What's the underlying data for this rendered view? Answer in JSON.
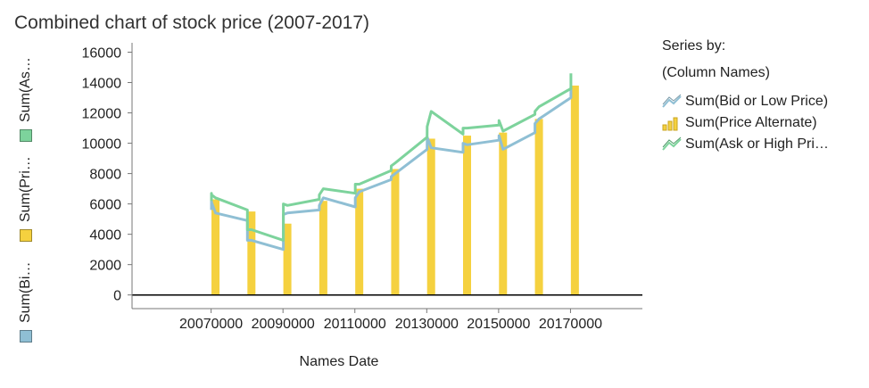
{
  "title": "Combined chart of stock price (2007-2017)",
  "legend": {
    "header1": "Series by:",
    "header2": "(Column Names)",
    "items": [
      {
        "label": "Sum(Bid or Low Price)",
        "icon": "line-icon",
        "color": "#8fbfd4"
      },
      {
        "label": "Sum(Price Alternate)",
        "icon": "bar-icon",
        "color": "#f5d13f"
      },
      {
        "label": "Sum(Ask or High Pri…",
        "icon": "line-icon",
        "color": "#7dd39c"
      }
    ]
  },
  "y_legend": [
    {
      "label": "Sum(As…",
      "color": "#7dd39c"
    },
    {
      "label": "Sum(Pri…",
      "color": "#f5d13f"
    },
    {
      "label": "Sum(Bi…",
      "color": "#8fbfd4"
    }
  ],
  "chart_data": {
    "type": "bar+line",
    "title": "Combined chart of stock price (2007-2017)",
    "xlabel": "Names Date",
    "ylabel": "",
    "x_ticks": [
      20070000,
      20090000,
      20110000,
      20130000,
      20150000,
      20170000
    ],
    "y_ticks": [
      0,
      2000,
      4000,
      6000,
      8000,
      10000,
      12000,
      14000,
      16000
    ],
    "xlim": [
      20048000,
      20190000
    ],
    "ylim": [
      -900,
      16500
    ],
    "series": [
      {
        "name": "Sum(Bid or Low Price)",
        "type": "line",
        "color": "#8fbfd4",
        "x": [
          20070103,
          20070105,
          20070110,
          20071228,
          20080102,
          20080110,
          20081231,
          20090102,
          20090110,
          20091231,
          20100104,
          20100110,
          20101231,
          20110103,
          20110110,
          20111230,
          20120103,
          20120110,
          20121231,
          20130102,
          20130110,
          20131231,
          20140102,
          20140110,
          20141231,
          20150102,
          20150110,
          20151231,
          20160104,
          20160110,
          20161230,
          20170103,
          20170110
        ],
        "y": [
          5600,
          6200,
          6100,
          5400,
          4900,
          3600,
          3600,
          3000,
          5300,
          5400,
          5600,
          5900,
          6400,
          5800,
          6400,
          6800,
          7600,
          7800,
          8000,
          9600,
          10400,
          9700,
          9400,
          10000,
          9900,
          10200,
          10500,
          9600,
          10700,
          11300,
          11600,
          13000,
          13700
        ]
      },
      {
        "name": "Sum(Price Alternate)",
        "type": "bar",
        "color": "#f5d13f",
        "x": [
          20070103,
          20080102,
          20090102,
          20100104,
          20110103,
          20120103,
          20130102,
          20140102,
          20150102,
          20160104,
          20170103
        ],
        "y": [
          6300,
          5500,
          4700,
          6200,
          7000,
          8300,
          10300,
          10500,
          10700,
          11600,
          13800
        ]
      },
      {
        "name": "Sum(Ask or High Price)",
        "type": "line",
        "color": "#7dd39c",
        "x": [
          20070103,
          20070105,
          20070110,
          20071228,
          20080102,
          20080110,
          20081231,
          20090102,
          20090110,
          20091231,
          20100104,
          20100110,
          20101231,
          20110103,
          20110110,
          20111230,
          20120103,
          20120110,
          20121231,
          20130102,
          20130110,
          20131231,
          20140102,
          20140110,
          20141231,
          20150102,
          20150110,
          20151231,
          20160104,
          20160110,
          20161230,
          20170103,
          20170110
        ],
        "y": [
          6200,
          6700,
          6600,
          6400,
          5600,
          4300,
          4300,
          3600,
          6000,
          5900,
          6300,
          6600,
          7000,
          6700,
          7300,
          7300,
          8200,
          8500,
          8700,
          10400,
          11100,
          12100,
          10600,
          11000,
          11000,
          11200,
          11500,
          10800,
          11900,
          12100,
          12400,
          13600,
          14600
        ]
      }
    ],
    "legend_position": "right",
    "grid": false
  }
}
